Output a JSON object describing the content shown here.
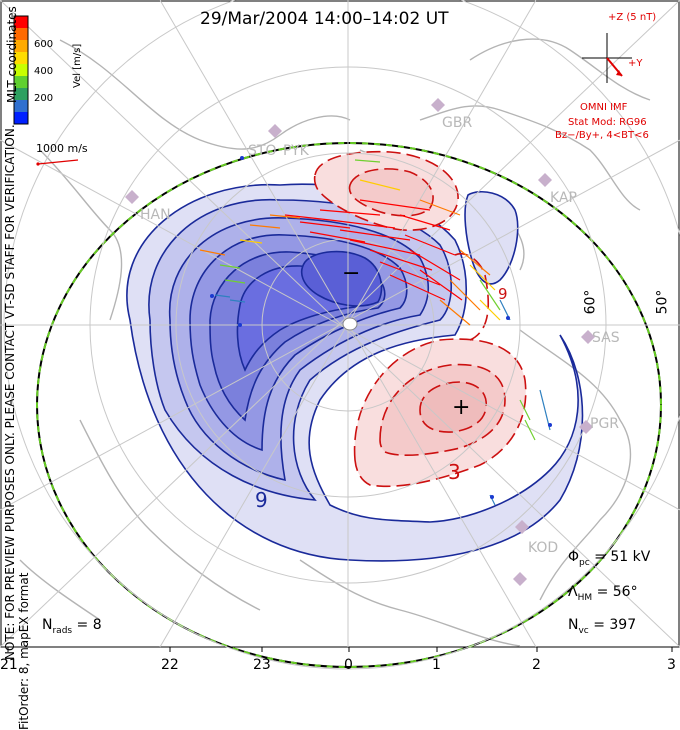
{
  "title": "29/Mar/2004 14:00–14:02 UT",
  "note_line1": "NOTE: FOR PREVIEW PURPOSES ONLY. PLEASE CONTACT VT-SD STAFF FOR VERIFICATION.",
  "note_line2": "FitOrder: 8, mapEX format",
  "coords_label": "MLT coordinates",
  "colorbar": {
    "label": "Vel [m/s]",
    "ticks": [
      "600",
      "400",
      "200"
    ],
    "colors": [
      "#ff0000",
      "#ff6a00",
      "#ffaa00",
      "#ffdd00",
      "#c8ff00",
      "#60d030",
      "#2ea060",
      "#3070d0",
      "#0020ff"
    ]
  },
  "reference_vector": {
    "label": "1000 m/s",
    "color": "#e00000"
  },
  "imf_panel": {
    "z_label": "+Z (5 nT)",
    "y_label": "+Y",
    "source": "OMNI IMF",
    "stat_model": "Stat Mod: RG96",
    "condition": "Bz−/By+, 4<BT<6",
    "color": "#e00000"
  },
  "stations": [
    "GBR",
    "KAP",
    "SAS",
    "PGR",
    "KOD",
    "HAN",
    "PYK",
    "STO"
  ],
  "latitude_labels": [
    "60°",
    "50°"
  ],
  "contour_labels": [
    "9",
    "3",
    "9"
  ],
  "extrema": {
    "min": "−",
    "max": "+"
  },
  "mlt_ticks": [
    "21",
    "22",
    "23",
    "0",
    "1",
    "2",
    "3"
  ],
  "stats": {
    "phi_pc_symbol": "Φ",
    "phi_pc_sub": "pc",
    "phi_pc_value": " = 51 kV",
    "lambda_hm_symbol": "Λ",
    "lambda_hm_sub": "HM",
    "lambda_hm_value": " = 56°",
    "n_vc_symbol": "N",
    "n_vc_sub": "vc",
    "n_vc_value": " = 397",
    "n_rads_symbol": "N",
    "n_rads_sub": "rads",
    "n_rads_value": " = 8"
  },
  "colors": {
    "negative_fill": "#6a6ee0",
    "negative_line": "#1a2a9a",
    "positive_fill": "#f2c2c2",
    "positive_line": "#cc1010",
    "grid": "#c8c8c8",
    "land": "#b4b4b4",
    "hmb_dash": "#66cc22"
  }
}
